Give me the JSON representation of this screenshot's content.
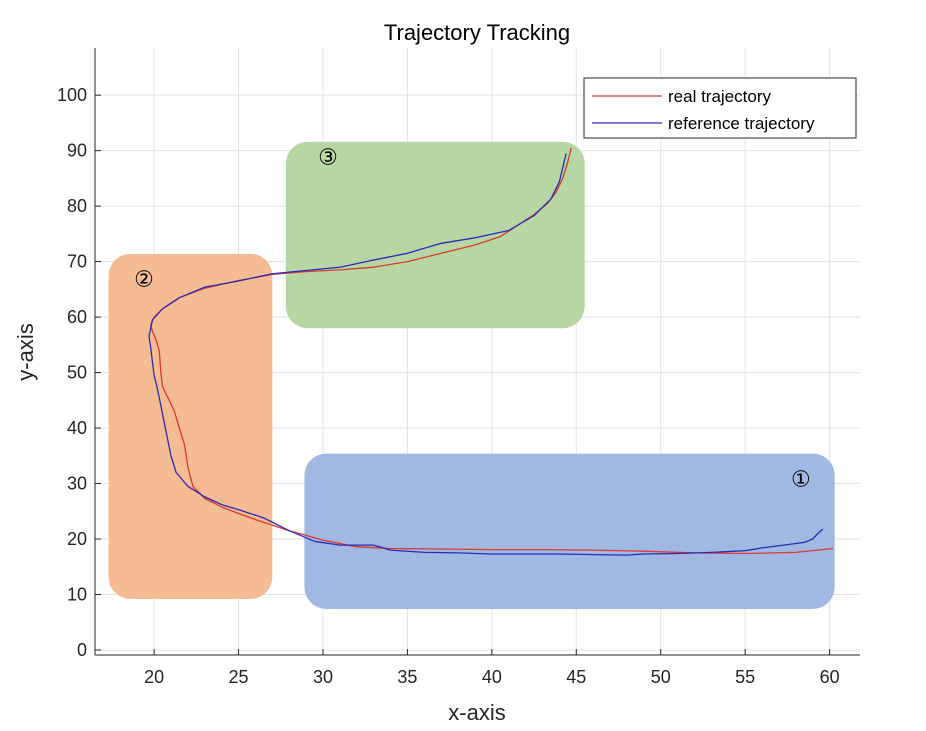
{
  "chart_data": {
    "type": "line",
    "title": "Trajectory Tracking",
    "xlabel": "x-axis",
    "ylabel": "y-axis",
    "xlim": [
      16.5,
      61.8
    ],
    "ylim": [
      -0.9,
      108.5
    ],
    "xticks": [
      20,
      25,
      30,
      35,
      40,
      45,
      50,
      55,
      60
    ],
    "yticks": [
      0,
      10,
      20,
      30,
      40,
      50,
      60,
      70,
      80,
      90,
      100
    ],
    "grid": true,
    "legend": {
      "position": "top-right",
      "entries": [
        "real trajectory",
        "reference trajectory"
      ]
    },
    "colors": {
      "real": "#d93a2b",
      "reference": "#2b2bb8",
      "region1": "#a0b8e2",
      "region2": "#f5bb93",
      "region3": "#b6d7a4",
      "grid": "#e3e3e3",
      "axis": "#262626"
    },
    "series": [
      {
        "name": "real trajectory",
        "color": "#d93a2b",
        "x": [
          60.2,
          58,
          55,
          52,
          49,
          46,
          43,
          40,
          37,
          34,
          32,
          30,
          28,
          26,
          25,
          24,
          23,
          22.3,
          22,
          21.8,
          21.5,
          21.2,
          20.9,
          20.7,
          20.5,
          20.4,
          20.3,
          20.1,
          19.9,
          19.8,
          20,
          20.5,
          21.5,
          23,
          25,
          27,
          29,
          31,
          33,
          35,
          37,
          39,
          40.5,
          41.5,
          42.5,
          43.3,
          43.8,
          44.2,
          44.5,
          44.7
        ],
        "y": [
          18.3,
          17.6,
          17.4,
          17.5,
          17.8,
          18.0,
          18.1,
          18.1,
          18.2,
          18.3,
          18.6,
          19.8,
          21.5,
          23.5,
          24.6,
          25.8,
          27.3,
          29.5,
          33,
          37,
          40,
          43,
          45,
          46.2,
          47.5,
          50,
          54,
          56,
          57.5,
          58.5,
          60,
          61.5,
          63.5,
          65.2,
          66.6,
          67.7,
          68.2,
          68.5,
          69,
          70,
          71.5,
          73,
          74.5,
          76.5,
          78.5,
          80.5,
          82.5,
          85,
          88,
          90.5
        ]
      },
      {
        "name": "reference trajectory",
        "color": "#2b2bb8",
        "x": [
          59.6,
          59.3,
          59,
          58.5,
          57.5,
          56,
          55,
          53,
          51,
          49,
          48,
          46,
          44,
          42,
          40,
          38,
          36,
          34,
          33,
          31,
          29.5,
          28,
          26.5,
          25,
          24,
          23,
          22,
          21.3,
          21,
          20.8,
          20.6,
          20.4,
          20.2,
          20,
          19.9,
          19.8,
          19.7,
          19.9,
          20.5,
          21.5,
          23,
          25,
          27,
          29,
          31,
          33,
          35,
          37,
          39,
          41,
          42.5,
          43.5,
          44,
          44.4
        ],
        "y": [
          21.8,
          21,
          20,
          19.4,
          19,
          18.4,
          17.9,
          17.6,
          17.4,
          17.3,
          17.1,
          17.2,
          17.3,
          17.3,
          17.3,
          17.5,
          17.6,
          18,
          18.9,
          18.9,
          19.6,
          21.5,
          23.8,
          25.3,
          26.2,
          27.6,
          29.5,
          32,
          35,
          38,
          41,
          44,
          47,
          49.5,
          52,
          54.5,
          56.5,
          59.5,
          61.5,
          63.5,
          65.4,
          66.5,
          67.8,
          68.4,
          69,
          70.3,
          71.5,
          73.3,
          74.3,
          75.6,
          78.3,
          81.3,
          84.4,
          89.5
        ]
      }
    ],
    "annotations": [
      {
        "label": "①",
        "x": 58.3,
        "y": 29.5,
        "box_x": [
          28.9,
          60.3
        ],
        "box_y": [
          7.4,
          35.4
        ],
        "fill": "#a0b8e2"
      },
      {
        "label": "②",
        "x": 19.4,
        "y": 65.5,
        "box_x": [
          17.3,
          27.0
        ],
        "box_y": [
          9.2,
          71.4
        ],
        "fill": "#f5bb93"
      },
      {
        "label": "③",
        "x": 30.3,
        "y": 87.5,
        "box_x": [
          27.8,
          45.5
        ],
        "box_y": [
          58.0,
          91.6
        ],
        "fill": "#b6d7a4"
      }
    ]
  }
}
